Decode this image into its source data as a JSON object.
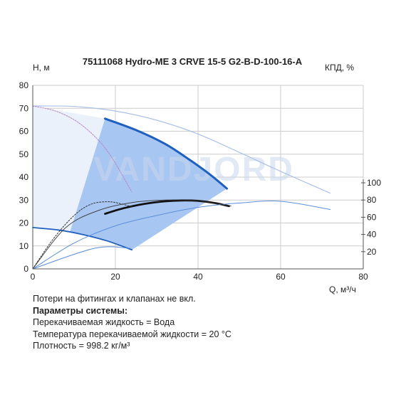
{
  "chart_data": {
    "type": "line",
    "title": "75111068 Hydro-ME 3 CRVE 15-5 G2-B-D-100-16-A",
    "ylabel": "H, м",
    "y2label": "КПД, %",
    "xlabel": "Q, м³/ч",
    "xlim": [
      0,
      80
    ],
    "ylim": [
      0,
      80
    ],
    "y2lim": [
      0,
      100
    ],
    "x_ticks": [
      "0",
      "20",
      "40",
      "60",
      "80"
    ],
    "y_ticks": [
      "0",
      "10",
      "20",
      "30",
      "40",
      "50",
      "60",
      "70",
      "80"
    ],
    "y2_ticks": [
      "20",
      "40",
      "60",
      "80",
      "100"
    ],
    "grid": true,
    "watermark": "VANDJORD",
    "colors": {
      "dark_blue": "#1f5fbf",
      "mid_blue": "#5b8fd9",
      "light_blue": "#a9c0e8",
      "fill": "#a8c6f2",
      "pale_fill": "#eaf1fb",
      "black": "#111111",
      "purple": "#b888c8",
      "grid": "#cccccc"
    },
    "series": [
      {
        "role": "head-max",
        "x": [
          17.5,
          25,
          32,
          38,
          43,
          47
        ],
        "y": [
          65.5,
          60.5,
          54.5,
          47.5,
          41,
          35
        ]
      },
      {
        "role": "head-min",
        "x": [
          0,
          6,
          12,
          18,
          24
        ],
        "y": [
          18,
          17,
          15,
          12.2,
          8.3
        ]
      },
      {
        "role": "head-upper-envelope",
        "x": [
          0,
          10,
          20,
          30,
          40,
          50,
          60,
          72
        ],
        "y": [
          71,
          70.8,
          68.8,
          64.8,
          58.8,
          50.8,
          42.5,
          33
        ]
      },
      {
        "role": "head-purple",
        "x": [
          0,
          6,
          12,
          18,
          24
        ],
        "y": [
          71,
          68.5,
          62.5,
          51.5,
          33.5
        ]
      },
      {
        "role": "efficiency-bold",
        "x": [
          17.5,
          22,
          27,
          32,
          36,
          40,
          44,
          47.5
        ],
        "y": [
          64,
          70.5,
          75.5,
          78.5,
          79.5,
          79,
          76.5,
          73
        ]
      },
      {
        "role": "efficiency-dashed",
        "x": [
          0,
          5,
          10,
          14,
          18,
          21,
          24
        ],
        "y": [
          0,
          35,
          62,
          75,
          78,
          76,
          72
        ]
      },
      {
        "role": "efficiency-max",
        "x": [
          0,
          10,
          20,
          30,
          40,
          50,
          60,
          72
        ],
        "y": [
          0,
          30,
          50,
          62,
          71.5,
          76.5,
          78.5,
          69
        ]
      },
      {
        "role": "efficiency-mid",
        "x": [
          0,
          8,
          16,
          24,
          32,
          40,
          48
        ],
        "y": [
          0,
          48,
          68,
          77,
          80,
          79,
          73
        ]
      },
      {
        "role": "npsh",
        "x": [
          0,
          15,
          23.5
        ],
        "y": [
          0,
          9,
          9
        ]
      }
    ],
    "region_operating": [
      [
        17.5,
        65.5
      ],
      [
        25,
        60.5
      ],
      [
        32,
        54.5
      ],
      [
        38,
        47.5
      ],
      [
        43,
        41
      ],
      [
        47,
        35
      ],
      [
        24,
        8.3
      ],
      [
        18,
        12.2
      ],
      [
        12,
        15
      ],
      [
        9,
        16
      ]
    ],
    "region_envelope": [
      [
        0,
        71
      ],
      [
        17.5,
        65.5
      ],
      [
        9,
        16
      ],
      [
        0,
        18
      ]
    ]
  },
  "notes": {
    "line1": "Потери на фитингах и клапанах не вкл.",
    "line2": "Параметры системы:",
    "line3": "Перекачиваемая жидкость = Вода",
    "line4": "Температура перекачиваемой жидкости = 20 °C",
    "line5": "Плотность = 998.2 кг/м³"
  }
}
